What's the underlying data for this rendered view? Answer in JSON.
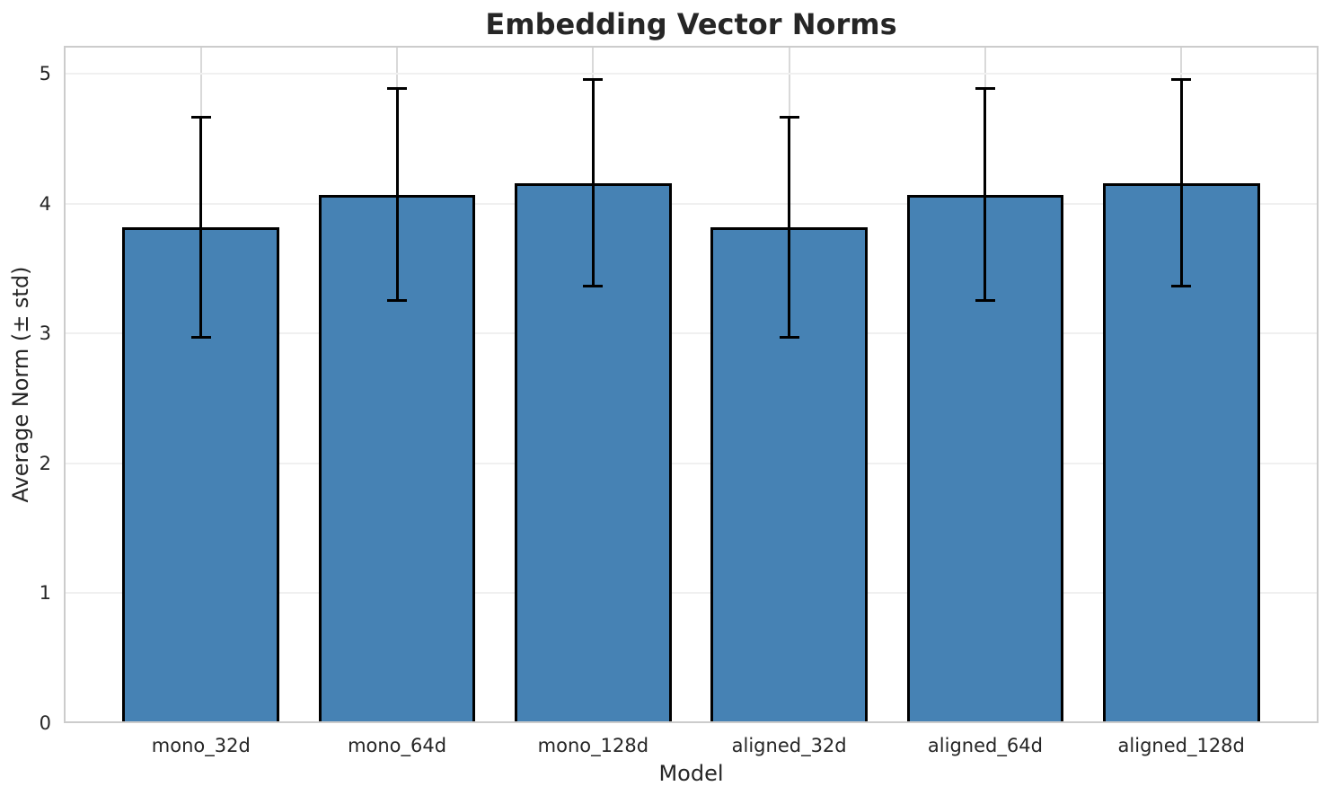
{
  "chart": {
    "title": "Embedding Vector Norms",
    "xlabel": "Model",
    "ylabel": "Average Norm (± std)"
  },
  "chart_data": {
    "type": "bar",
    "title": "Embedding Vector Norms",
    "xlabel": "Model",
    "ylabel": "Average Norm (± std)",
    "categories": [
      "mono_32d",
      "mono_64d",
      "mono_128d",
      "aligned_32d",
      "aligned_64d",
      "aligned_128d"
    ],
    "values": [
      3.82,
      4.07,
      4.16,
      3.82,
      4.07,
      4.16
    ],
    "errors": [
      0.85,
      0.82,
      0.8,
      0.85,
      0.82,
      0.8
    ],
    "yticks": [
      0,
      1,
      2,
      3,
      4,
      5
    ],
    "ylim": [
      0,
      5.215
    ],
    "xlim": [
      -0.7,
      5.7
    ],
    "bar_width": 0.8,
    "grid": true,
    "legend": "none",
    "bar_color": "#4682B4",
    "edge_color": "#000000",
    "error_color": "#000000",
    "grid_color_h": "#f0f0f0",
    "grid_color_v": "#d9d9d9",
    "spine_color": "#cccccc",
    "text_color": "#262626"
  }
}
